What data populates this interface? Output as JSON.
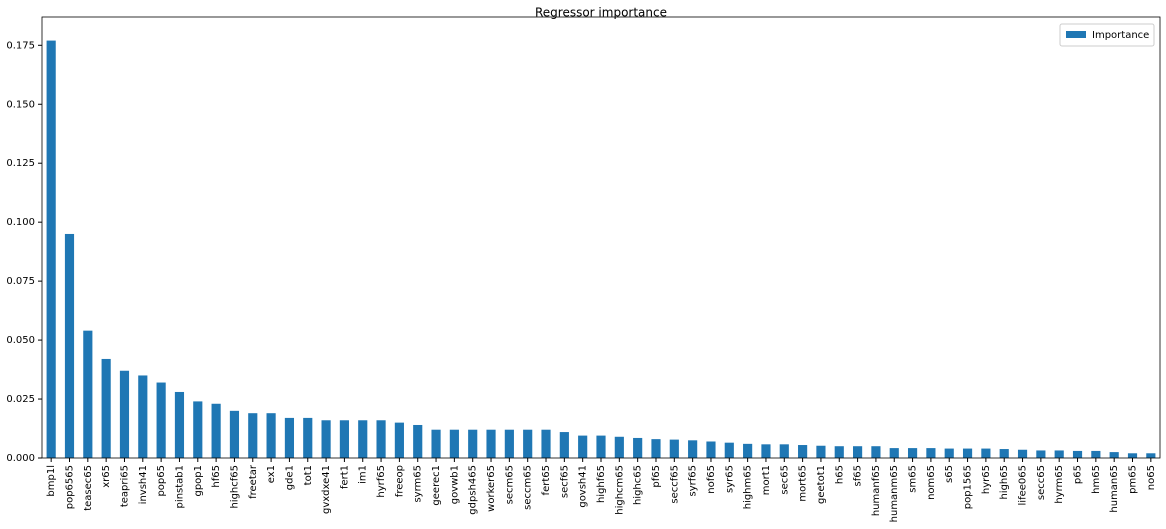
{
  "chart_data": {
    "type": "bar",
    "title": "Regressor importance",
    "categories": [
      "bmp1l",
      "pop6565",
      "teasec65",
      "xr65",
      "teapri65",
      "invsh41",
      "pop65",
      "pinstab1",
      "gpop1",
      "hf65",
      "highcf65",
      "freetar",
      "ex1",
      "gde1",
      "tot1",
      "gvxdxe41",
      "fert1",
      "im1",
      "hyrf65",
      "freeop",
      "syrm65",
      "geerec1",
      "govwb1",
      "gdpsh465",
      "worker65",
      "secm65",
      "seccm65",
      "fert65",
      "secf65",
      "govsh41",
      "highf65",
      "highcm65",
      "highc65",
      "pf65",
      "seccf65",
      "syrf65",
      "nof65",
      "syr65",
      "highm65",
      "mort1",
      "sec65",
      "mort65",
      "geetot1",
      "h65",
      "sf65",
      "humanf65",
      "humanm65",
      "sm65",
      "nom65",
      "s65",
      "pop1565",
      "hyr65",
      "high65",
      "lifee065",
      "secc65",
      "hyrm65",
      "p65",
      "hm65",
      "human65",
      "pm65",
      "no65"
    ],
    "series": [
      {
        "name": "Importance",
        "color": "#1f77b4",
        "values": [
          0.177,
          0.095,
          0.054,
          0.042,
          0.037,
          0.035,
          0.032,
          0.028,
          0.024,
          0.023,
          0.02,
          0.019,
          0.019,
          0.017,
          0.017,
          0.016,
          0.016,
          0.016,
          0.016,
          0.015,
          0.014,
          0.012,
          0.012,
          0.012,
          0.012,
          0.012,
          0.012,
          0.012,
          0.011,
          0.0095,
          0.0095,
          0.009,
          0.0085,
          0.008,
          0.0078,
          0.0075,
          0.007,
          0.0065,
          0.006,
          0.0058,
          0.0058,
          0.0055,
          0.0052,
          0.005,
          0.005,
          0.005,
          0.0042,
          0.0042,
          0.0042,
          0.004,
          0.004,
          0.004,
          0.0038,
          0.0035,
          0.0032,
          0.0032,
          0.003,
          0.003,
          0.0025,
          0.002,
          0.002
        ]
      }
    ],
    "ylim": [
      0,
      0.187
    ],
    "yticks": [
      {
        "value": 0,
        "label": "0.000"
      },
      {
        "value": 0.025,
        "label": "0.025"
      },
      {
        "value": 0.05,
        "label": "0.050"
      },
      {
        "value": 0.075,
        "label": "0.075"
      },
      {
        "value": 0.1,
        "label": "0.100"
      },
      {
        "value": 0.125,
        "label": "0.125"
      },
      {
        "value": 0.15,
        "label": "0.150"
      },
      {
        "value": 0.175,
        "label": "0.175"
      }
    ],
    "legend": "upper right"
  }
}
